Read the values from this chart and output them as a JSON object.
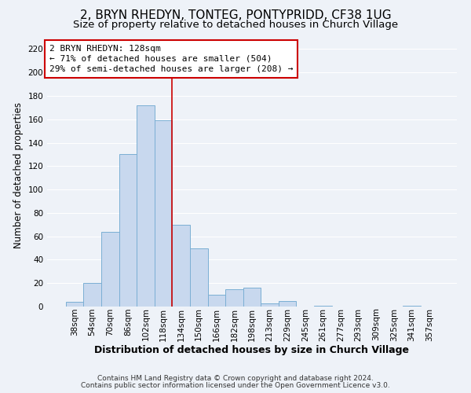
{
  "title": "2, BRYN RHEDYN, TONTEG, PONTYPRIDD, CF38 1UG",
  "subtitle": "Size of property relative to detached houses in Church Village",
  "xlabel": "Distribution of detached houses by size in Church Village",
  "ylabel": "Number of detached properties",
  "bar_color": "#c8d8ee",
  "bar_edge_color": "#7bafd4",
  "categories": [
    "38sqm",
    "54sqm",
    "70sqm",
    "86sqm",
    "102sqm",
    "118sqm",
    "134sqm",
    "150sqm",
    "166sqm",
    "182sqm",
    "198sqm",
    "213sqm",
    "229sqm",
    "245sqm",
    "261sqm",
    "277sqm",
    "293sqm",
    "309sqm",
    "325sqm",
    "341sqm",
    "357sqm"
  ],
  "values": [
    4,
    20,
    64,
    130,
    172,
    159,
    70,
    50,
    10,
    15,
    16,
    3,
    5,
    0,
    1,
    0,
    0,
    0,
    0,
    1,
    0
  ],
  "ylim": [
    0,
    225
  ],
  "yticks": [
    0,
    20,
    40,
    60,
    80,
    100,
    120,
    140,
    160,
    180,
    200,
    220
  ],
  "property_label": "2 BRYN RHEDYN: 128sqm",
  "annotation_line1": "← 71% of detached houses are smaller (504)",
  "annotation_line2": "29% of semi-detached houses are larger (208) →",
  "box_color": "#cc0000",
  "vline_bin_index": 5,
  "footer_line1": "Contains HM Land Registry data © Crown copyright and database right 2024.",
  "footer_line2": "Contains public sector information licensed under the Open Government Licence v3.0.",
  "background_color": "#eef2f8",
  "grid_color": "#ffffff",
  "title_fontsize": 11,
  "subtitle_fontsize": 9.5,
  "xlabel_fontsize": 9,
  "ylabel_fontsize": 8.5,
  "tick_fontsize": 7.5,
  "footer_fontsize": 6.5,
  "annot_fontsize": 8
}
